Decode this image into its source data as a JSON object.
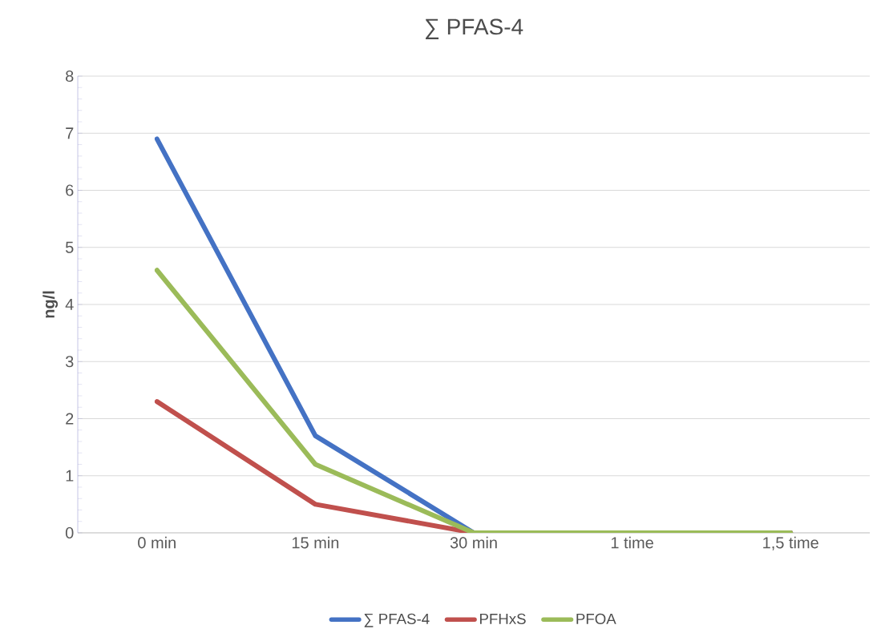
{
  "chart_data": {
    "type": "line",
    "title": "∑ PFAS-4",
    "ylabel": "ng/l",
    "categories": [
      "0 min",
      "15 min",
      "30 min",
      "1 time",
      "1,5 time"
    ],
    "series": [
      {
        "name": "∑ PFAS-4",
        "color": "#4472c4",
        "values": [
          6.9,
          1.7,
          0,
          0,
          0
        ]
      },
      {
        "name": "PFHxS",
        "color": "#c0504d",
        "values": [
          2.3,
          0.5,
          0,
          0,
          0
        ]
      },
      {
        "name": "PFOA",
        "color": "#9bbb59",
        "values": [
          4.6,
          1.2,
          0,
          0,
          0
        ]
      }
    ],
    "ylim": [
      0,
      8
    ],
    "yticks": [
      0,
      1,
      2,
      3,
      4,
      5,
      6,
      7,
      8
    ],
    "grid": "y",
    "legend": "bottom",
    "marker": "none",
    "line_style": "solid"
  }
}
